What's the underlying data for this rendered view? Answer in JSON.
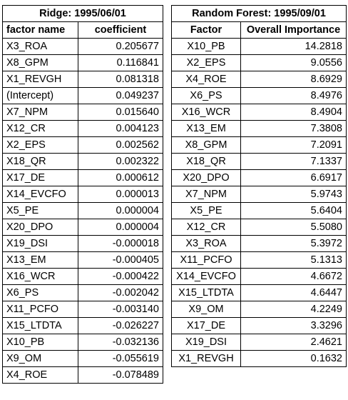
{
  "ridge": {
    "title": "Ridge: 1995/06/01",
    "headers": [
      "factor name",
      "coefficient"
    ],
    "rows": [
      [
        "X3_ROA",
        "0.205677"
      ],
      [
        "X8_GPM",
        "0.116841"
      ],
      [
        "X1_REVGH",
        "0.081318"
      ],
      [
        "(Intercept)",
        "0.049237"
      ],
      [
        "X7_NPM",
        "0.015640"
      ],
      [
        "X12_CR",
        "0.004123"
      ],
      [
        "X2_EPS",
        "0.002562"
      ],
      [
        "X18_QR",
        "0.002322"
      ],
      [
        "X17_DE",
        "0.000612"
      ],
      [
        "X14_EVCFO",
        "0.000013"
      ],
      [
        "X5_PE",
        "0.000004"
      ],
      [
        "X20_DPO",
        "0.000004"
      ],
      [
        "X19_DSI",
        "-0.000018"
      ],
      [
        "X13_EM",
        "-0.000405"
      ],
      [
        "X16_WCR",
        "-0.000422"
      ],
      [
        "X6_PS",
        "-0.002042"
      ],
      [
        "X11_PCFO",
        "-0.003140"
      ],
      [
        "X15_LTDTA",
        "-0.026227"
      ],
      [
        "X10_PB",
        "-0.032136"
      ],
      [
        "X9_OM",
        "-0.055619"
      ],
      [
        "X4_ROE",
        "-0.078489"
      ]
    ]
  },
  "random_forest": {
    "title": "Random Forest: 1995/09/01",
    "headers": [
      "Factor",
      "Overall Importance"
    ],
    "rows": [
      [
        "X10_PB",
        "14.2818"
      ],
      [
        "X2_EPS",
        "9.0556"
      ],
      [
        "X4_ROE",
        "8.6929"
      ],
      [
        "X6_PS",
        "8.4976"
      ],
      [
        "X16_WCR",
        "8.4904"
      ],
      [
        "X13_EM",
        "7.3808"
      ],
      [
        "X8_GPM",
        "7.2091"
      ],
      [
        "X18_QR",
        "7.1337"
      ],
      [
        "X20_DPO",
        "6.6917"
      ],
      [
        "X7_NPM",
        "5.9743"
      ],
      [
        "X5_PE",
        "5.6404"
      ],
      [
        "X12_CR",
        "5.5080"
      ],
      [
        "X3_ROA",
        "5.3972"
      ],
      [
        "X11_PCFO",
        "5.1313"
      ],
      [
        "X14_EVCFO",
        "4.6672"
      ],
      [
        "X15_LTDTA",
        "4.6447"
      ],
      [
        "X9_OM",
        "4.2249"
      ],
      [
        "X17_DE",
        "3.3296"
      ],
      [
        "X19_DSI",
        "2.4621"
      ],
      [
        "X1_REVGH",
        "0.1632"
      ]
    ]
  }
}
